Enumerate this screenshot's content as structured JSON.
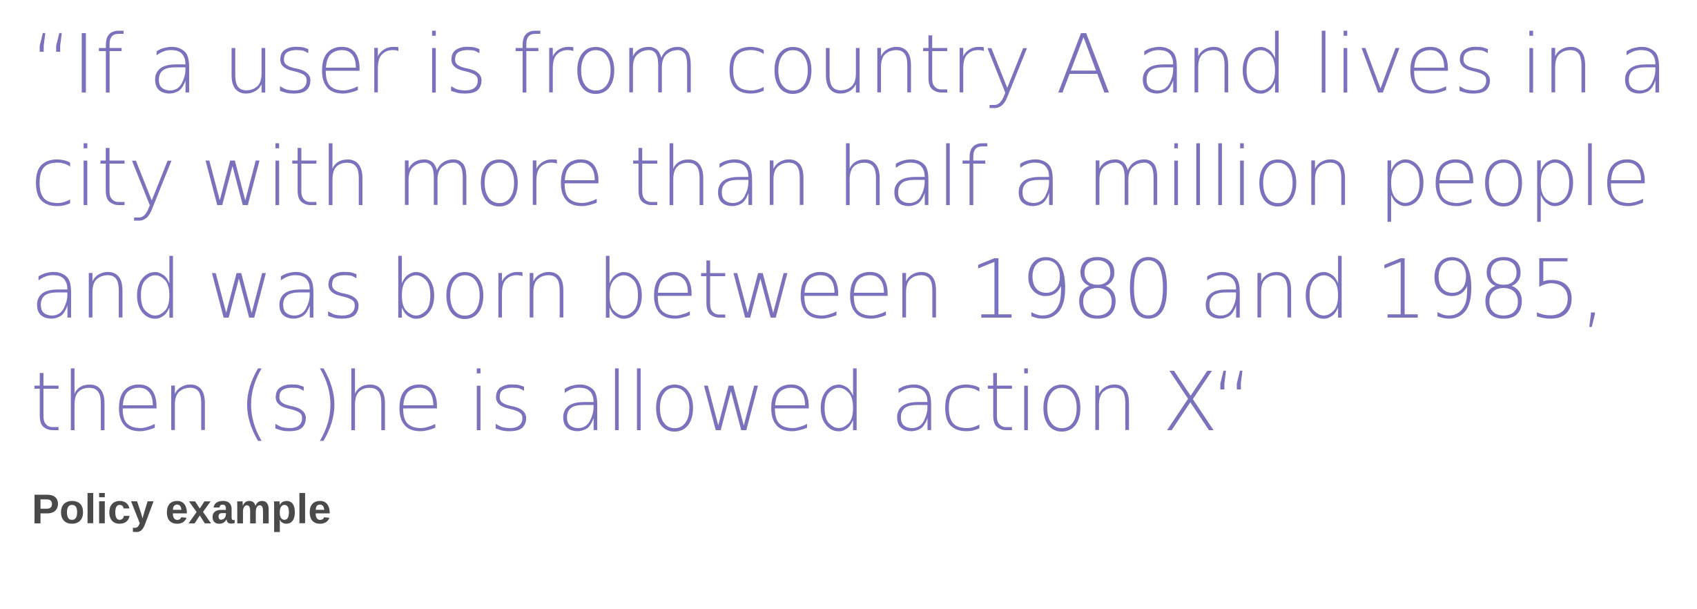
{
  "quote": {
    "lines": [
      "“If a user is from country A and lives in a",
      "city with more than half a million people",
      "and was born between 1980 and 1985,",
      "then (s)he is allowed action X“"
    ]
  },
  "caption": "Policy example",
  "colors": {
    "quote_text": "#7a72bc",
    "caption_text": "#4a4a4a",
    "background": "#ffffff"
  }
}
